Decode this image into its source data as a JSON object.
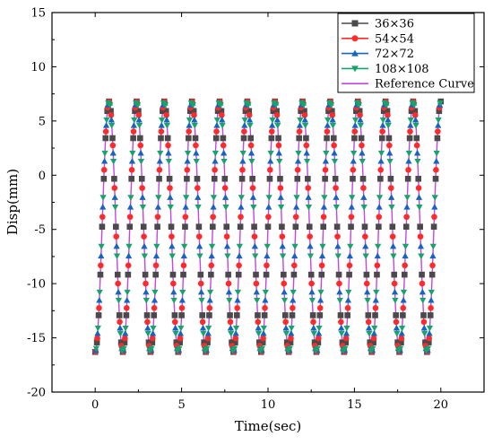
{
  "chart_data": {
    "type": "line",
    "title": "",
    "xlabel": "Time(sec)",
    "ylabel": "Disp(mm)",
    "xlim": [
      -2.5,
      22.5
    ],
    "ylim": [
      -20,
      15
    ],
    "xticks": [
      0,
      5,
      10,
      15,
      20
    ],
    "yticks": [
      -20,
      -15,
      -10,
      -5,
      0,
      5,
      10,
      15
    ],
    "grid": false,
    "legend_position": "top-right",
    "signal": {
      "t_start": 0,
      "t_end": 20,
      "min": -16.3,
      "max": 6.8,
      "period": 1.6
    },
    "series": [
      {
        "name": "36×36",
        "color": "#4a4a4a",
        "marker": "square",
        "t_offset": 0.0
      },
      {
        "name": "54×54",
        "color": "#ff2a2a",
        "marker": "circle",
        "t_offset": 0.02
      },
      {
        "name": "72×72",
        "color": "#1565c0",
        "marker": "triangle-up",
        "t_offset": 0.04
      },
      {
        "name": "108×108",
        "color": "#17a46b",
        "marker": "triangle-down",
        "t_offset": 0.06
      },
      {
        "name": "Reference Curve",
        "color": "#c545e6",
        "marker": "none"
      }
    ]
  }
}
